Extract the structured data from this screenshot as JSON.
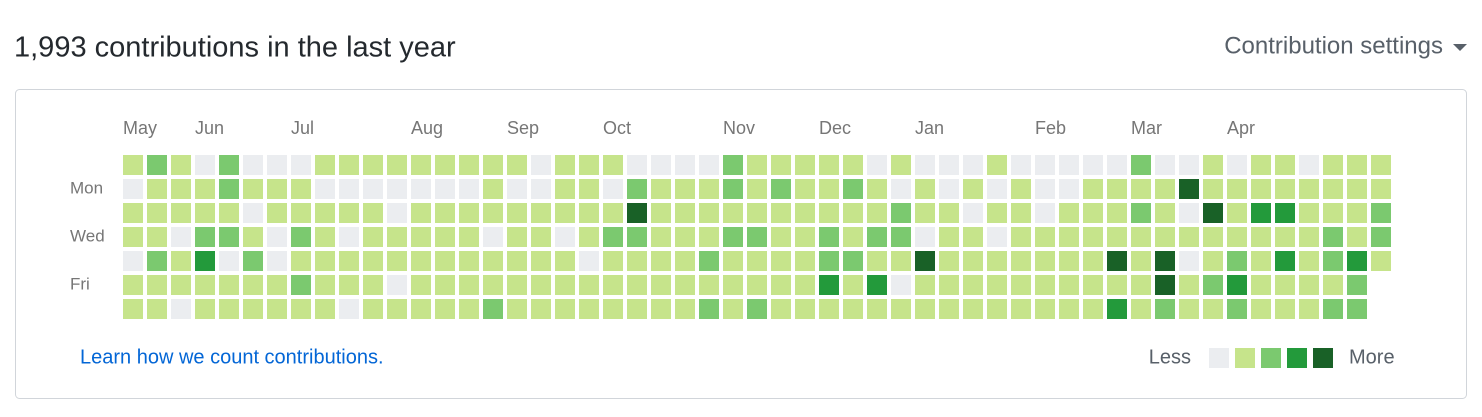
{
  "header": {
    "title": "1,993 contributions in the last year",
    "settings": "Contribution settings"
  },
  "contributions": {
    "week_labels": [
      "May",
      null,
      null,
      "Jun",
      null,
      null,
      null,
      "Jul",
      null,
      null,
      null,
      null,
      "Aug",
      null,
      null,
      null,
      "Sep",
      null,
      null,
      null,
      "Oct",
      null,
      null,
      null,
      null,
      "Nov",
      null,
      null,
      null,
      "Dec",
      null,
      null,
      null,
      "Jan",
      null,
      null,
      null,
      null,
      "Feb",
      null,
      null,
      null,
      "Mar",
      null,
      null,
      null,
      "Apr",
      null,
      null,
      null,
      null,
      null,
      null
    ],
    "day_labels": [
      null,
      "Mon",
      null,
      "Wed",
      null,
      "Fri",
      null
    ],
    "level_colors": [
      "#ebedf0",
      "#c6e48b",
      "#7bc96f",
      "#239a3b",
      "#196127"
    ],
    "rows": [
      [
        1,
        2,
        1,
        0,
        2,
        0,
        0,
        0,
        1,
        1,
        1,
        1,
        1,
        1,
        1,
        1,
        1,
        0,
        1,
        1,
        1,
        0,
        0,
        0,
        0,
        2,
        1,
        1,
        1,
        1,
        1,
        0,
        1,
        0,
        0,
        0,
        1,
        0,
        0,
        0,
        0,
        0,
        2,
        0,
        0,
        1,
        0,
        1,
        1,
        0,
        1,
        1,
        1
      ],
      [
        0,
        1,
        1,
        1,
        2,
        1,
        1,
        1,
        0,
        0,
        0,
        0,
        0,
        0,
        0,
        1,
        0,
        0,
        1,
        1,
        0,
        2,
        1,
        1,
        1,
        2,
        1,
        2,
        1,
        1,
        2,
        1,
        0,
        1,
        0,
        1,
        0,
        1,
        0,
        0,
        1,
        1,
        1,
        1,
        4,
        1,
        1,
        1,
        1,
        1,
        1,
        1,
        1
      ],
      [
        1,
        1,
        1,
        1,
        1,
        0,
        1,
        1,
        1,
        1,
        1,
        0,
        1,
        1,
        1,
        1,
        1,
        1,
        1,
        1,
        1,
        4,
        1,
        1,
        1,
        1,
        1,
        1,
        1,
        1,
        1,
        1,
        2,
        1,
        1,
        0,
        1,
        1,
        0,
        1,
        1,
        1,
        2,
        1,
        0,
        4,
        1,
        3,
        3,
        1,
        1,
        1,
        2
      ],
      [
        1,
        1,
        0,
        2,
        2,
        1,
        0,
        2,
        1,
        0,
        1,
        1,
        1,
        1,
        1,
        0,
        1,
        1,
        0,
        1,
        2,
        2,
        1,
        1,
        1,
        2,
        2,
        1,
        1,
        2,
        1,
        2,
        2,
        0,
        1,
        1,
        0,
        1,
        1,
        1,
        1,
        1,
        1,
        1,
        1,
        1,
        1,
        1,
        1,
        1,
        2,
        1,
        2
      ],
      [
        0,
        2,
        1,
        3,
        0,
        2,
        0,
        1,
        1,
        1,
        1,
        1,
        1,
        1,
        1,
        1,
        1,
        1,
        1,
        0,
        1,
        1,
        1,
        1,
        2,
        1,
        1,
        1,
        1,
        2,
        2,
        1,
        1,
        4,
        1,
        1,
        1,
        1,
        1,
        1,
        1,
        4,
        1,
        4,
        0,
        1,
        2,
        1,
        3,
        1,
        2,
        3,
        1
      ],
      [
        1,
        1,
        1,
        1,
        1,
        1,
        1,
        2,
        1,
        1,
        1,
        0,
        1,
        1,
        1,
        1,
        1,
        1,
        1,
        1,
        1,
        1,
        1,
        1,
        1,
        1,
        1,
        1,
        1,
        3,
        1,
        3,
        0,
        1,
        1,
        1,
        1,
        1,
        1,
        1,
        1,
        1,
        1,
        4,
        1,
        2,
        3,
        1,
        1,
        1,
        1,
        2,
        null
      ],
      [
        1,
        1,
        0,
        1,
        1,
        1,
        1,
        1,
        1,
        0,
        1,
        1,
        1,
        1,
        1,
        2,
        1,
        1,
        1,
        1,
        1,
        1,
        1,
        1,
        2,
        1,
        2,
        1,
        1,
        1,
        1,
        1,
        1,
        1,
        1,
        1,
        1,
        1,
        1,
        1,
        1,
        3,
        1,
        2,
        1,
        1,
        2,
        1,
        1,
        1,
        2,
        2,
        null
      ]
    ]
  },
  "footer": {
    "link": "Learn how we count contributions.",
    "less": "Less",
    "more": "More"
  }
}
